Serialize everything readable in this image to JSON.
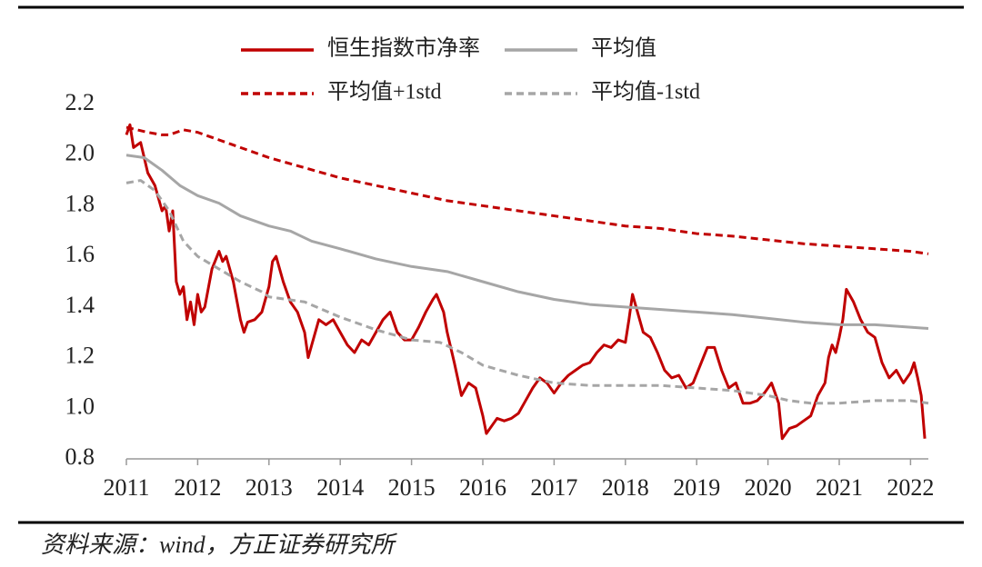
{
  "chart_data": {
    "type": "line",
    "source": "资料来源：wind，方正证券研究所",
    "xlim": [
      2011,
      2022.25
    ],
    "xticks": [
      2011,
      2012,
      2013,
      2014,
      2015,
      2016,
      2017,
      2018,
      2019,
      2020,
      2021,
      2022
    ],
    "ylim": [
      0.8,
      2.2
    ],
    "yticks": [
      0.8,
      {
        "value": 1.0,
        "label": "1.0"
      },
      1.2,
      1.4,
      1.6,
      1.8,
      {
        "value": 2.0,
        "label": "2.0"
      },
      2.2
    ],
    "grid": false,
    "series": [
      {
        "name": "恒生指数市净率",
        "color": "#c00000",
        "dashed": false,
        "x": [
          2011.0,
          2011.05,
          2011.1,
          2011.2,
          2011.3,
          2011.4,
          2011.5,
          2011.55,
          2011.6,
          2011.65,
          2011.7,
          2011.75,
          2011.8,
          2011.85,
          2011.9,
          2011.95,
          2012.0,
          2012.05,
          2012.1,
          2012.2,
          2012.3,
          2012.35,
          2012.4,
          2012.5,
          2012.6,
          2012.65,
          2012.7,
          2012.8,
          2012.9,
          2013.0,
          2013.05,
          2013.1,
          2013.2,
          2013.3,
          2013.4,
          2013.5,
          2013.55,
          2013.6,
          2013.7,
          2013.8,
          2013.9,
          2014.0,
          2014.1,
          2014.2,
          2014.3,
          2014.4,
          2014.5,
          2014.6,
          2014.7,
          2014.8,
          2014.9,
          2015.0,
          2015.1,
          2015.2,
          2015.3,
          2015.35,
          2015.45,
          2015.5,
          2015.6,
          2015.7,
          2015.8,
          2015.9,
          2016.0,
          2016.05,
          2016.1,
          2016.2,
          2016.3,
          2016.4,
          2016.5,
          2016.6,
          2016.7,
          2016.8,
          2016.9,
          2017.0,
          2017.1,
          2017.2,
          2017.3,
          2017.4,
          2017.5,
          2017.6,
          2017.7,
          2017.8,
          2017.9,
          2018.0,
          2018.05,
          2018.1,
          2018.15,
          2018.25,
          2018.35,
          2018.45,
          2018.55,
          2018.65,
          2018.75,
          2018.85,
          2018.95,
          2019.05,
          2019.15,
          2019.25,
          2019.35,
          2019.45,
          2019.55,
          2019.65,
          2019.75,
          2019.85,
          2019.95,
          2020.05,
          2020.15,
          2020.2,
          2020.3,
          2020.4,
          2020.5,
          2020.6,
          2020.7,
          2020.8,
          2020.85,
          2020.9,
          2020.95,
          2021.0,
          2021.05,
          2021.1,
          2021.2,
          2021.3,
          2021.4,
          2021.5,
          2021.6,
          2021.7,
          2021.8,
          2021.9,
          2022.0,
          2022.05,
          2022.1,
          2022.15,
          2022.2
        ],
        "values": [
          2.08,
          2.12,
          2.03,
          2.05,
          1.93,
          1.88,
          1.78,
          1.8,
          1.7,
          1.78,
          1.5,
          1.45,
          1.48,
          1.35,
          1.42,
          1.33,
          1.45,
          1.38,
          1.4,
          1.55,
          1.62,
          1.58,
          1.6,
          1.5,
          1.35,
          1.3,
          1.34,
          1.35,
          1.38,
          1.48,
          1.58,
          1.6,
          1.5,
          1.42,
          1.38,
          1.3,
          1.2,
          1.25,
          1.35,
          1.33,
          1.35,
          1.3,
          1.25,
          1.22,
          1.27,
          1.25,
          1.3,
          1.35,
          1.38,
          1.3,
          1.27,
          1.27,
          1.32,
          1.38,
          1.43,
          1.45,
          1.38,
          1.3,
          1.18,
          1.05,
          1.1,
          1.08,
          0.97,
          0.9,
          0.92,
          0.96,
          0.95,
          0.96,
          0.98,
          1.03,
          1.08,
          1.12,
          1.1,
          1.06,
          1.1,
          1.13,
          1.15,
          1.17,
          1.18,
          1.22,
          1.25,
          1.24,
          1.27,
          1.26,
          1.35,
          1.45,
          1.4,
          1.3,
          1.28,
          1.22,
          1.15,
          1.12,
          1.13,
          1.08,
          1.1,
          1.17,
          1.24,
          1.24,
          1.15,
          1.08,
          1.1,
          1.02,
          1.02,
          1.03,
          1.06,
          1.1,
          1.02,
          0.88,
          0.92,
          0.93,
          0.95,
          0.97,
          1.05,
          1.1,
          1.2,
          1.25,
          1.22,
          1.28,
          1.35,
          1.47,
          1.42,
          1.35,
          1.3,
          1.28,
          1.18,
          1.12,
          1.15,
          1.1,
          1.14,
          1.18,
          1.12,
          1.05,
          0.88
        ]
      },
      {
        "name": "平均值",
        "color": "#a6a6a6",
        "dashed": false,
        "x": [
          2011.0,
          2011.25,
          2011.5,
          2011.75,
          2012.0,
          2012.3,
          2012.6,
          2013.0,
          2013.3,
          2013.6,
          2014.0,
          2014.5,
          2015.0,
          2015.5,
          2016.0,
          2016.5,
          2017.0,
          2017.5,
          2018.0,
          2018.5,
          2019.0,
          2019.5,
          2020.0,
          2020.5,
          2021.0,
          2021.5,
          2022.0,
          2022.25
        ],
        "values": [
          2.0,
          1.99,
          1.94,
          1.88,
          1.84,
          1.81,
          1.76,
          1.72,
          1.7,
          1.66,
          1.63,
          1.59,
          1.56,
          1.54,
          1.5,
          1.46,
          1.43,
          1.41,
          1.4,
          1.39,
          1.38,
          1.37,
          1.355,
          1.34,
          1.33,
          1.33,
          1.32,
          1.315
        ]
      },
      {
        "name": "平均值+1std",
        "color": "#c00000",
        "dashed": true,
        "x": [
          2011.0,
          2011.3,
          2011.5,
          2011.6,
          2011.8,
          2012.0,
          2012.3,
          2012.6,
          2013.0,
          2013.5,
          2014.0,
          2014.5,
          2015.0,
          2015.5,
          2016.0,
          2016.5,
          2017.0,
          2017.5,
          2018.0,
          2018.5,
          2019.0,
          2019.5,
          2020.0,
          2020.5,
          2021.0,
          2021.5,
          2022.0,
          2022.25
        ],
        "values": [
          2.11,
          2.09,
          2.08,
          2.08,
          2.1,
          2.09,
          2.06,
          2.03,
          1.99,
          1.95,
          1.91,
          1.88,
          1.85,
          1.82,
          1.8,
          1.78,
          1.76,
          1.74,
          1.72,
          1.71,
          1.69,
          1.68,
          1.665,
          1.65,
          1.64,
          1.63,
          1.62,
          1.61
        ]
      },
      {
        "name": "平均值-1std",
        "color": "#a6a6a6",
        "dashed": true,
        "x": [
          2011.0,
          2011.2,
          2011.4,
          2011.6,
          2011.8,
          2012.0,
          2012.3,
          2012.6,
          2012.9,
          2013.0,
          2013.5,
          2014.0,
          2014.5,
          2015.0,
          2015.4,
          2015.7,
          2016.0,
          2016.5,
          2017.0,
          2017.5,
          2018.0,
          2018.5,
          2019.0,
          2019.5,
          2020.0,
          2020.3,
          2020.6,
          2021.0,
          2021.5,
          2022.0,
          2022.25
        ],
        "values": [
          1.89,
          1.9,
          1.86,
          1.78,
          1.66,
          1.6,
          1.55,
          1.5,
          1.46,
          1.44,
          1.42,
          1.36,
          1.31,
          1.27,
          1.26,
          1.22,
          1.17,
          1.13,
          1.1,
          1.09,
          1.09,
          1.09,
          1.08,
          1.07,
          1.05,
          1.03,
          1.02,
          1.02,
          1.03,
          1.03,
          1.02
        ]
      }
    ]
  }
}
